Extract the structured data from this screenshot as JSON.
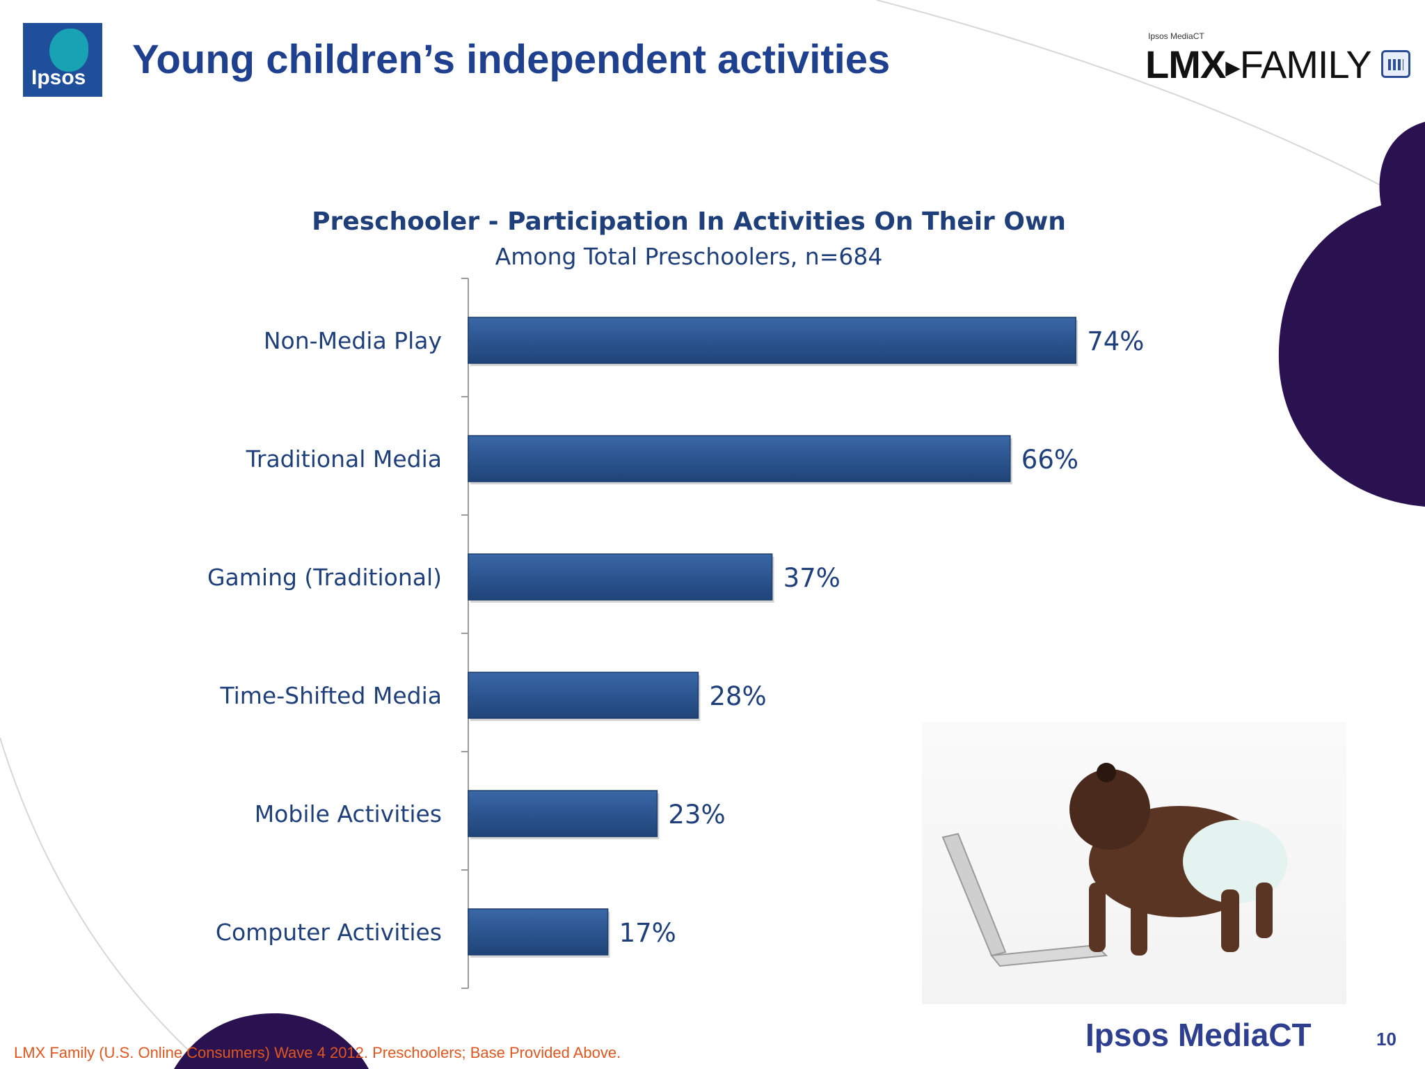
{
  "slide": {
    "title": "Young children’s independent activities",
    "page_number": "10",
    "footer_source": "LMX Family (U.S. Online Consumers) Wave 4 2012.  Preschoolers; Base Provided Above.",
    "footer_brand": "Ipsos MediaCT",
    "colors": {
      "title": "#1f3f8f",
      "accent_purple": "#2a1250",
      "footer_source": "#e0561e"
    }
  },
  "logos": {
    "ipsos": "Ipsos",
    "brand_small": "Ipsos MediaCT",
    "brand_lmx": "LMX",
    "brand_family": "FAMILY",
    "icons": [
      "ipsos-logo-icon",
      "family-icon",
      "arrow-right-icon"
    ]
  },
  "chart_data": {
    "type": "bar",
    "orientation": "horizontal",
    "title": "Preschooler - Participation In Activities On Their Own",
    "subtitle": "Among Total Preschoolers, n=684",
    "categories": [
      "Non-Media Play",
      "Traditional Media",
      "Gaming (Traditional)",
      "Time-Shifted Media",
      "Mobile Activities",
      "Computer Activities"
    ],
    "values": [
      74,
      66,
      37,
      28,
      23,
      17
    ],
    "labels": [
      "74%",
      "66%",
      "37%",
      "28%",
      "23%",
      "17%"
    ],
    "unit": "%",
    "xlim": [
      0,
      100
    ],
    "grid": false,
    "legend": "none",
    "bar_color": "#2c5590"
  }
}
